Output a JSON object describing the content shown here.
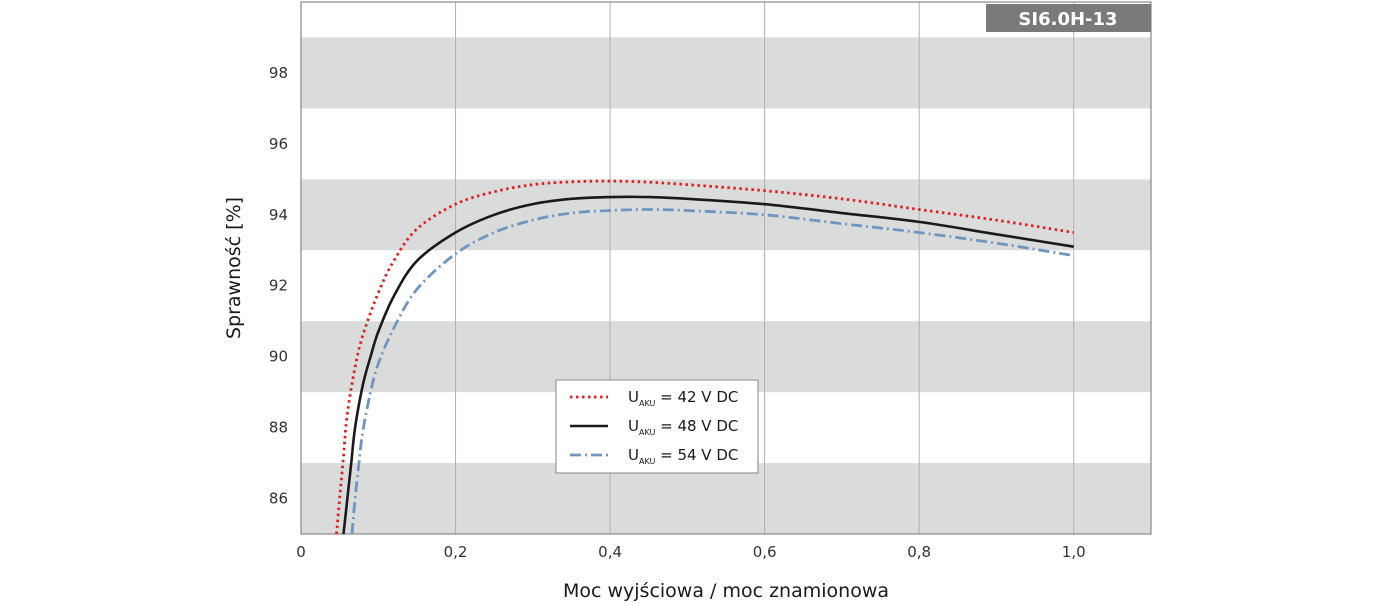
{
  "chart_data": {
    "type": "line",
    "model_label": "SI6.0H-13",
    "xlabel": "Moc wyjściowa / moc znamionowa",
    "ylabel": "Sprawność [%]",
    "xlim": [
      0,
      1.1
    ],
    "ylim": [
      85,
      100
    ],
    "x_ticks": [
      0,
      0.2,
      0.4,
      0.6,
      0.8,
      1.0
    ],
    "x_tick_labels": [
      "0",
      "0,2",
      "0,4",
      "0,6",
      "0,8",
      "1,0"
    ],
    "y_ticks": [
      86,
      88,
      90,
      92,
      94,
      96,
      98
    ],
    "y_tick_labels": [
      "86",
      "88",
      "90",
      "92",
      "94",
      "96",
      "98"
    ],
    "grid": "vertical lines, alternating horizontal bands",
    "legend_position": "center-left",
    "series": [
      {
        "name": "U_AKU = 42 V DC",
        "legend_main": "U",
        "legend_sub": "AKU",
        "legend_rest": " = 42 V DC",
        "style": "dotted",
        "color": "#e02020",
        "points": [
          [
            0.046,
            85
          ],
          [
            0.05,
            86
          ],
          [
            0.055,
            87.2
          ],
          [
            0.06,
            88.4
          ],
          [
            0.07,
            89.7
          ],
          [
            0.08,
            90.6
          ],
          [
            0.1,
            91.8
          ],
          [
            0.12,
            92.7
          ],
          [
            0.15,
            93.6
          ],
          [
            0.2,
            94.3
          ],
          [
            0.25,
            94.65
          ],
          [
            0.3,
            94.85
          ],
          [
            0.35,
            94.93
          ],
          [
            0.4,
            94.95
          ],
          [
            0.45,
            94.92
          ],
          [
            0.5,
            94.85
          ],
          [
            0.6,
            94.68
          ],
          [
            0.7,
            94.45
          ],
          [
            0.8,
            94.15
          ],
          [
            0.9,
            93.85
          ],
          [
            1.0,
            93.5
          ]
        ]
      },
      {
        "name": "U_AKU = 48 V DC",
        "legend_main": "U",
        "legend_sub": "AKU",
        "legend_rest": " = 48 V DC",
        "style": "solid",
        "color": "#1a1a1a",
        "points": [
          [
            0.055,
            85
          ],
          [
            0.06,
            86
          ],
          [
            0.065,
            87
          ],
          [
            0.07,
            88
          ],
          [
            0.08,
            89.2
          ],
          [
            0.09,
            90
          ],
          [
            0.1,
            90.7
          ],
          [
            0.12,
            91.7
          ],
          [
            0.15,
            92.7
          ],
          [
            0.2,
            93.5
          ],
          [
            0.25,
            94.0
          ],
          [
            0.3,
            94.3
          ],
          [
            0.35,
            94.45
          ],
          [
            0.4,
            94.5
          ],
          [
            0.45,
            94.5
          ],
          [
            0.5,
            94.45
          ],
          [
            0.6,
            94.3
          ],
          [
            0.7,
            94.05
          ],
          [
            0.8,
            93.8
          ],
          [
            0.9,
            93.45
          ],
          [
            1.0,
            93.1
          ]
        ]
      },
      {
        "name": "U_AKU = 54 V DC",
        "legend_main": "U",
        "legend_sub": "AKU",
        "legend_rest": " = 54 V DC",
        "style": "dash-dot",
        "color": "#7096c0",
        "points": [
          [
            0.066,
            85
          ],
          [
            0.07,
            86
          ],
          [
            0.075,
            87
          ],
          [
            0.08,
            87.9
          ],
          [
            0.09,
            89
          ],
          [
            0.1,
            89.8
          ],
          [
            0.12,
            90.8
          ],
          [
            0.15,
            91.9
          ],
          [
            0.2,
            92.9
          ],
          [
            0.25,
            93.5
          ],
          [
            0.3,
            93.85
          ],
          [
            0.35,
            94.05
          ],
          [
            0.4,
            94.12
          ],
          [
            0.45,
            94.15
          ],
          [
            0.5,
            94.12
          ],
          [
            0.6,
            94.0
          ],
          [
            0.7,
            93.75
          ],
          [
            0.8,
            93.5
          ],
          [
            0.9,
            93.2
          ],
          [
            1.0,
            92.85
          ]
        ]
      }
    ]
  }
}
